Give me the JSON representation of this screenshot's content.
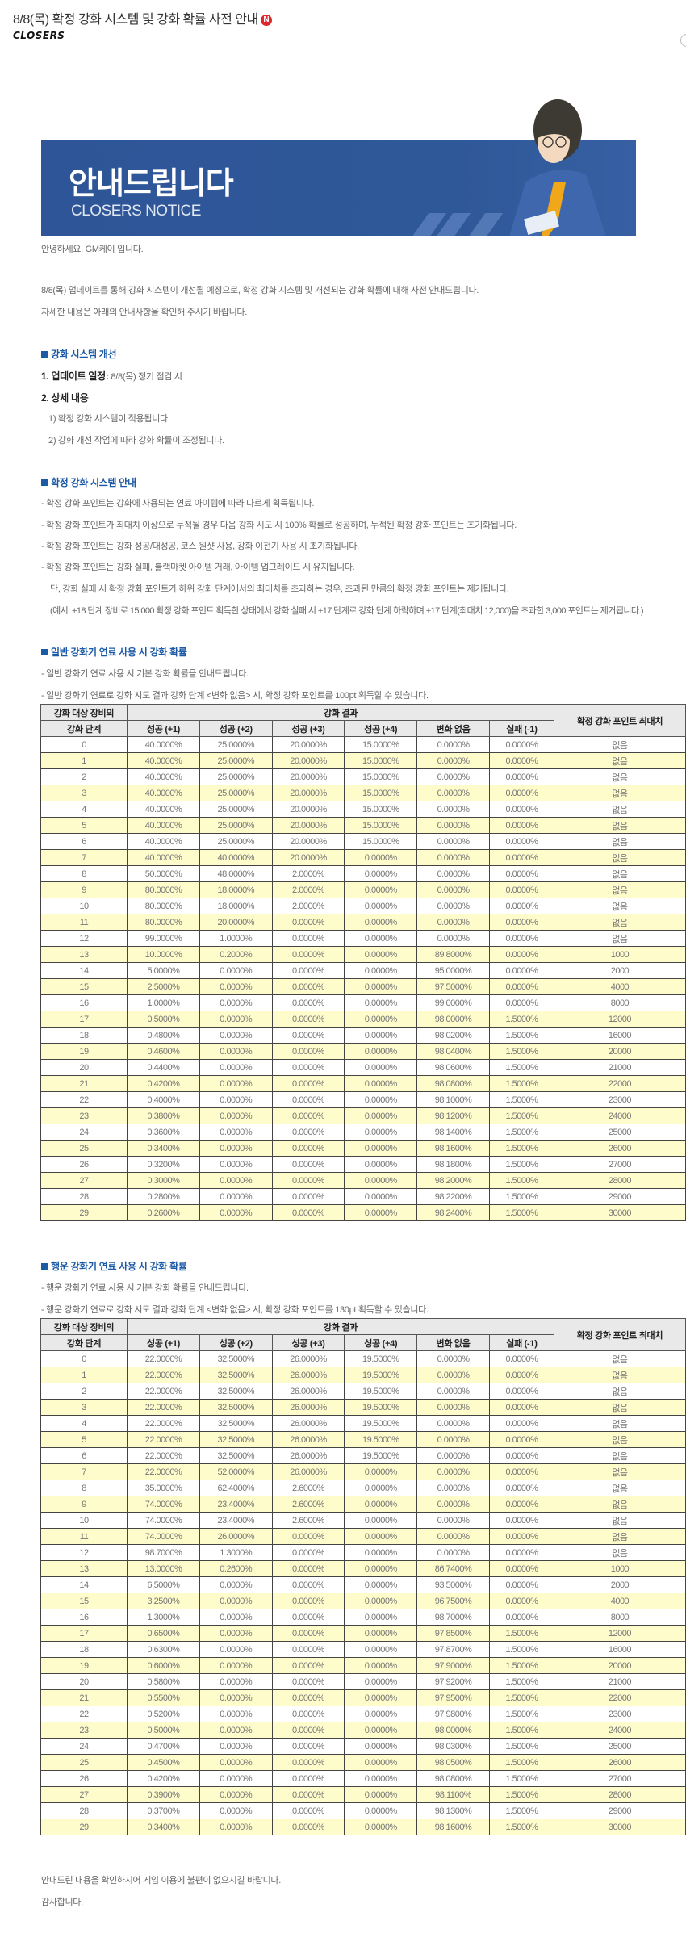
{
  "post": {
    "title": "8/8(목) 확정 강화 시스템 및 강화 확률 사전 안내",
    "new_badge": "N",
    "logo_text": "CLOSERS"
  },
  "banner": {
    "title": "안내드립니다",
    "subtitle": "CLOSERS NOTICE"
  },
  "intro": {
    "greeting": "안녕하세요. GM케이 입니다.",
    "line1": "8/8(목) 업데이트를 통해 강화 시스템이 개선될 예정으로, 확정 강화 시스템 및 개선되는 강화 확률에 대해 사전 안내드립니다.",
    "line2": "자세한 내용은 아래의 안내사항을 확인해 주시기 바랍니다."
  },
  "section1": {
    "heading": "강화 시스템 개선",
    "item1_label": "1. 업데이트 일정:",
    "item1_value": " 8/8(목) 정기 점검 시",
    "item2_label": "2. 상세 내용",
    "sub1": "1) 확정 강화 시스템이 적용됩니다.",
    "sub2": "2) 강화 개선 작업에 따라 강화 확률이 조정됩니다."
  },
  "section2": {
    "heading": "확정 강화 시스템 안내",
    "bullets": [
      "- 확정 강화 포인트는 강화에 사용되는 연료 아이템에 따라 다르게 획득됩니다.",
      "- 확정 강화 포인트가 최대치 이상으로 누적될 경우 다음 강화 시도 시 100% 확률로 성공하며, 누적된 확정 강화 포인트는 초기화됩니다.",
      "- 확정 강화 포인트는 강화 성공/대성공, 코스 원샷 사용, 강화 이전기 사용 시 초기화됩니다.",
      "- 확정 강화 포인트는 강화 실패, 블랙마켓 아이템 거래, 아이템 업그레이드 시 유지됩니다."
    ],
    "note1": "단, 강화 실패 시 확정 강화 포인트가 하위 강화 단계에서의 최대치를 초과하는 경우, 초과된 만큼의 확정 강화 포인트는 제거됩니다.",
    "note2": "(예시: +18 단계 장비로 15,000 확정 강화 포인트 획득한 상태에서 강화 실패 시 +17 단계로 강화 단계 하락하며 +17 단계(최대치 12,000)을 초과한 3,000 포인트는 제거됩니다.)"
  },
  "table_headers": {
    "stage_line1": "강화 대상 장비의",
    "stage_line2": "강화 단계",
    "result": "강화 결과",
    "cols": [
      "성공 (+1)",
      "성공 (+2)",
      "성공 (+3)",
      "성공 (+4)",
      "변화 없음",
      "실패 (-1)"
    ],
    "max_points": "확정 강화 포인트 최대치"
  },
  "section3": {
    "heading": "일반 강화기 연료 사용 시 강화 확률",
    "bullet1": "- 일반 강화기 연료 사용 시 기본 강화 확률을 안내드립니다.",
    "bullet2": "- 일반 강화기 연료로 강화 시도 결과 강화 단계 <변화 없음> 시, 확정 강화 포인트를 100pt 획득할 수 있습니다.",
    "rows": [
      [
        "0",
        "40.0000%",
        "25.0000%",
        "20.0000%",
        "15.0000%",
        "0.0000%",
        "0.0000%",
        "없음"
      ],
      [
        "1",
        "40.0000%",
        "25.0000%",
        "20.0000%",
        "15.0000%",
        "0.0000%",
        "0.0000%",
        "없음"
      ],
      [
        "2",
        "40.0000%",
        "25.0000%",
        "20.0000%",
        "15.0000%",
        "0.0000%",
        "0.0000%",
        "없음"
      ],
      [
        "3",
        "40.0000%",
        "25.0000%",
        "20.0000%",
        "15.0000%",
        "0.0000%",
        "0.0000%",
        "없음"
      ],
      [
        "4",
        "40.0000%",
        "25.0000%",
        "20.0000%",
        "15.0000%",
        "0.0000%",
        "0.0000%",
        "없음"
      ],
      [
        "5",
        "40.0000%",
        "25.0000%",
        "20.0000%",
        "15.0000%",
        "0.0000%",
        "0.0000%",
        "없음"
      ],
      [
        "6",
        "40.0000%",
        "25.0000%",
        "20.0000%",
        "15.0000%",
        "0.0000%",
        "0.0000%",
        "없음"
      ],
      [
        "7",
        "40.0000%",
        "40.0000%",
        "20.0000%",
        "0.0000%",
        "0.0000%",
        "0.0000%",
        "없음"
      ],
      [
        "8",
        "50.0000%",
        "48.0000%",
        "2.0000%",
        "0.0000%",
        "0.0000%",
        "0.0000%",
        "없음"
      ],
      [
        "9",
        "80.0000%",
        "18.0000%",
        "2.0000%",
        "0.0000%",
        "0.0000%",
        "0.0000%",
        "없음"
      ],
      [
        "10",
        "80.0000%",
        "18.0000%",
        "2.0000%",
        "0.0000%",
        "0.0000%",
        "0.0000%",
        "없음"
      ],
      [
        "11",
        "80.0000%",
        "20.0000%",
        "0.0000%",
        "0.0000%",
        "0.0000%",
        "0.0000%",
        "없음"
      ],
      [
        "12",
        "99.0000%",
        "1.0000%",
        "0.0000%",
        "0.0000%",
        "0.0000%",
        "0.0000%",
        "없음"
      ],
      [
        "13",
        "10.0000%",
        "0.2000%",
        "0.0000%",
        "0.0000%",
        "89.8000%",
        "0.0000%",
        "1000"
      ],
      [
        "14",
        "5.0000%",
        "0.0000%",
        "0.0000%",
        "0.0000%",
        "95.0000%",
        "0.0000%",
        "2000"
      ],
      [
        "15",
        "2.5000%",
        "0.0000%",
        "0.0000%",
        "0.0000%",
        "97.5000%",
        "0.0000%",
        "4000"
      ],
      [
        "16",
        "1.0000%",
        "0.0000%",
        "0.0000%",
        "0.0000%",
        "99.0000%",
        "0.0000%",
        "8000"
      ],
      [
        "17",
        "0.5000%",
        "0.0000%",
        "0.0000%",
        "0.0000%",
        "98.0000%",
        "1.5000%",
        "12000"
      ],
      [
        "18",
        "0.4800%",
        "0.0000%",
        "0.0000%",
        "0.0000%",
        "98.0200%",
        "1.5000%",
        "16000"
      ],
      [
        "19",
        "0.4600%",
        "0.0000%",
        "0.0000%",
        "0.0000%",
        "98.0400%",
        "1.5000%",
        "20000"
      ],
      [
        "20",
        "0.4400%",
        "0.0000%",
        "0.0000%",
        "0.0000%",
        "98.0600%",
        "1.5000%",
        "21000"
      ],
      [
        "21",
        "0.4200%",
        "0.0000%",
        "0.0000%",
        "0.0000%",
        "98.0800%",
        "1.5000%",
        "22000"
      ],
      [
        "22",
        "0.4000%",
        "0.0000%",
        "0.0000%",
        "0.0000%",
        "98.1000%",
        "1.5000%",
        "23000"
      ],
      [
        "23",
        "0.3800%",
        "0.0000%",
        "0.0000%",
        "0.0000%",
        "98.1200%",
        "1.5000%",
        "24000"
      ],
      [
        "24",
        "0.3600%",
        "0.0000%",
        "0.0000%",
        "0.0000%",
        "98.1400%",
        "1.5000%",
        "25000"
      ],
      [
        "25",
        "0.3400%",
        "0.0000%",
        "0.0000%",
        "0.0000%",
        "98.1600%",
        "1.5000%",
        "26000"
      ],
      [
        "26",
        "0.3200%",
        "0.0000%",
        "0.0000%",
        "0.0000%",
        "98.1800%",
        "1.5000%",
        "27000"
      ],
      [
        "27",
        "0.3000%",
        "0.0000%",
        "0.0000%",
        "0.0000%",
        "98.2000%",
        "1.5000%",
        "28000"
      ],
      [
        "28",
        "0.2800%",
        "0.0000%",
        "0.0000%",
        "0.0000%",
        "98.2200%",
        "1.5000%",
        "29000"
      ],
      [
        "29",
        "0.2600%",
        "0.0000%",
        "0.0000%",
        "0.0000%",
        "98.2400%",
        "1.5000%",
        "30000"
      ]
    ]
  },
  "section4": {
    "heading": "행운 강화기 연료 사용 시 강화 확률",
    "bullet1": "- 행운 강화기 연료 사용 시 기본 강화 확률을 안내드립니다.",
    "bullet2": "- 행운 강화기 연료로 강화 시도 결과 강화 단계 <변화 없음> 시, 확정 강화 포인트를 130pt 획득할 수 있습니다.",
    "rows": [
      [
        "0",
        "22.0000%",
        "32.5000%",
        "26.0000%",
        "19.5000%",
        "0.0000%",
        "0.0000%",
        "없음"
      ],
      [
        "1",
        "22.0000%",
        "32.5000%",
        "26.0000%",
        "19.5000%",
        "0.0000%",
        "0.0000%",
        "없음"
      ],
      [
        "2",
        "22.0000%",
        "32.5000%",
        "26.0000%",
        "19.5000%",
        "0.0000%",
        "0.0000%",
        "없음"
      ],
      [
        "3",
        "22.0000%",
        "32.5000%",
        "26.0000%",
        "19.5000%",
        "0.0000%",
        "0.0000%",
        "없음"
      ],
      [
        "4",
        "22.0000%",
        "32.5000%",
        "26.0000%",
        "19.5000%",
        "0.0000%",
        "0.0000%",
        "없음"
      ],
      [
        "5",
        "22.0000%",
        "32.5000%",
        "26.0000%",
        "19.5000%",
        "0.0000%",
        "0.0000%",
        "없음"
      ],
      [
        "6",
        "22.0000%",
        "32.5000%",
        "26.0000%",
        "19.5000%",
        "0.0000%",
        "0.0000%",
        "없음"
      ],
      [
        "7",
        "22.0000%",
        "52.0000%",
        "26.0000%",
        "0.0000%",
        "0.0000%",
        "0.0000%",
        "없음"
      ],
      [
        "8",
        "35.0000%",
        "62.4000%",
        "2.6000%",
        "0.0000%",
        "0.0000%",
        "0.0000%",
        "없음"
      ],
      [
        "9",
        "74.0000%",
        "23.4000%",
        "2.6000%",
        "0.0000%",
        "0.0000%",
        "0.0000%",
        "없음"
      ],
      [
        "10",
        "74.0000%",
        "23.4000%",
        "2.6000%",
        "0.0000%",
        "0.0000%",
        "0.0000%",
        "없음"
      ],
      [
        "11",
        "74.0000%",
        "26.0000%",
        "0.0000%",
        "0.0000%",
        "0.0000%",
        "0.0000%",
        "없음"
      ],
      [
        "12",
        "98.7000%",
        "1.3000%",
        "0.0000%",
        "0.0000%",
        "0.0000%",
        "0.0000%",
        "없음"
      ],
      [
        "13",
        "13.0000%",
        "0.2600%",
        "0.0000%",
        "0.0000%",
        "86.7400%",
        "0.0000%",
        "1000"
      ],
      [
        "14",
        "6.5000%",
        "0.0000%",
        "0.0000%",
        "0.0000%",
        "93.5000%",
        "0.0000%",
        "2000"
      ],
      [
        "15",
        "3.2500%",
        "0.0000%",
        "0.0000%",
        "0.0000%",
        "96.7500%",
        "0.0000%",
        "4000"
      ],
      [
        "16",
        "1.3000%",
        "0.0000%",
        "0.0000%",
        "0.0000%",
        "98.7000%",
        "0.0000%",
        "8000"
      ],
      [
        "17",
        "0.6500%",
        "0.0000%",
        "0.0000%",
        "0.0000%",
        "97.8500%",
        "1.5000%",
        "12000"
      ],
      [
        "18",
        "0.6300%",
        "0.0000%",
        "0.0000%",
        "0.0000%",
        "97.8700%",
        "1.5000%",
        "16000"
      ],
      [
        "19",
        "0.6000%",
        "0.0000%",
        "0.0000%",
        "0.0000%",
        "97.9000%",
        "1.5000%",
        "20000"
      ],
      [
        "20",
        "0.5800%",
        "0.0000%",
        "0.0000%",
        "0.0000%",
        "97.9200%",
        "1.5000%",
        "21000"
      ],
      [
        "21",
        "0.5500%",
        "0.0000%",
        "0.0000%",
        "0.0000%",
        "97.9500%",
        "1.5000%",
        "22000"
      ],
      [
        "22",
        "0.5200%",
        "0.0000%",
        "0.0000%",
        "0.0000%",
        "97.9800%",
        "1.5000%",
        "23000"
      ],
      [
        "23",
        "0.5000%",
        "0.0000%",
        "0.0000%",
        "0.0000%",
        "98.0000%",
        "1.5000%",
        "24000"
      ],
      [
        "24",
        "0.4700%",
        "0.0000%",
        "0.0000%",
        "0.0000%",
        "98.0300%",
        "1.5000%",
        "25000"
      ],
      [
        "25",
        "0.4500%",
        "0.0000%",
        "0.0000%",
        "0.0000%",
        "98.0500%",
        "1.5000%",
        "26000"
      ],
      [
        "26",
        "0.4200%",
        "0.0000%",
        "0.0000%",
        "0.0000%",
        "98.0800%",
        "1.5000%",
        "27000"
      ],
      [
        "27",
        "0.3900%",
        "0.0000%",
        "0.0000%",
        "0.0000%",
        "98.1100%",
        "1.5000%",
        "28000"
      ],
      [
        "28",
        "0.3700%",
        "0.0000%",
        "0.0000%",
        "0.0000%",
        "98.1300%",
        "1.5000%",
        "29000"
      ],
      [
        "29",
        "0.3400%",
        "0.0000%",
        "0.0000%",
        "0.0000%",
        "98.1600%",
        "1.5000%",
        "30000"
      ]
    ]
  },
  "closing": {
    "line1": "안내드린 내용을 확인하시어 게임 이용에 불편이 없으시길 바랍니다.",
    "line2": "감사합니다."
  },
  "colors": {
    "heading_blue": "#1d5aa6",
    "banner_blue": "#2d5597",
    "row_highlight": "#fffccc",
    "header_gray": "#e9e9e9",
    "new_badge_red": "#e0262b"
  }
}
